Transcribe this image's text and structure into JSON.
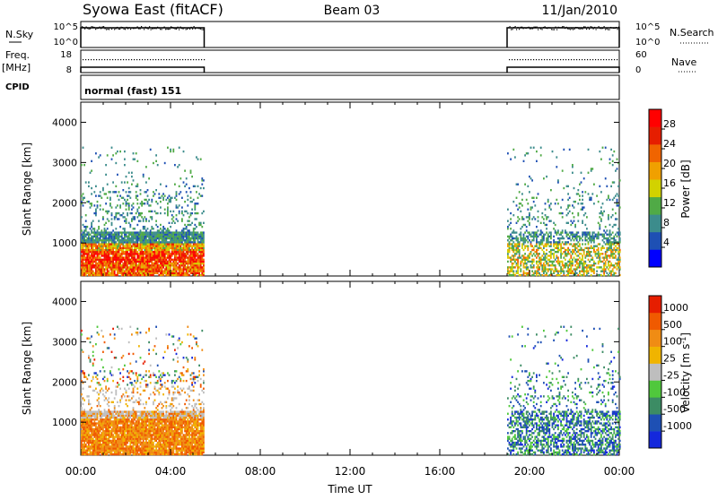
{
  "header": {
    "station": "Syowa East (fitACF)",
    "beam": "Beam 03",
    "date": "11/Jan/2010"
  },
  "panels": {
    "nsky": {
      "label": "N.Sky",
      "ticks_left": [
        "10^5",
        "10^0"
      ],
      "ticks_right": [
        "10^5",
        "10^0"
      ],
      "right_label": "N.Search"
    },
    "freq": {
      "label_line1": "Freq.",
      "label_line2": "[MHz]",
      "ticks_left": [
        "18",
        "8"
      ],
      "ticks_right": [
        "60",
        "0"
      ],
      "right_label": "Nave"
    },
    "cpid": {
      "label": "CPID",
      "text": "normal (fast) 151"
    }
  },
  "chart_data": [
    {
      "type": "heatmap",
      "name": "power",
      "ylabel": "Slant Range [km]",
      "xlabel": "Time UT",
      "xlim": [
        "00:00",
        "24:00"
      ],
      "ylim": [
        180,
        4500
      ],
      "x_ticks": [
        "00:00",
        "04:00",
        "08:00",
        "12:00",
        "16:00",
        "20:00",
        "00:00"
      ],
      "y_ticks": [
        1000,
        2000,
        3000,
        4000
      ],
      "data_intervals_ut": [
        [
          "00:00",
          "05:30"
        ],
        [
          "19:00",
          "24:00"
        ]
      ],
      "colorbar": {
        "label": "Power [dB]",
        "range": [
          0,
          32
        ],
        "ticks": [
          "4",
          "8",
          "12",
          "16",
          "20",
          "24",
          "28"
        ],
        "colors": [
          "#0000ff",
          "#1e50b4",
          "#3c8c8c",
          "#50aa46",
          "#d2d200",
          "#f0a000",
          "#f06400",
          "#e61e00",
          "#ff0000"
        ]
      }
    },
    {
      "type": "heatmap",
      "name": "velocity",
      "ylabel": "Slant Range [km]",
      "xlabel": "Time UT",
      "xlim": [
        "00:00",
        "24:00"
      ],
      "ylim": [
        180,
        4500
      ],
      "x_ticks": [
        "00:00",
        "04:00",
        "08:00",
        "12:00",
        "16:00",
        "20:00",
        "00:00"
      ],
      "y_ticks": [
        1000,
        2000,
        3000,
        4000
      ],
      "data_intervals_ut": [
        [
          "00:00",
          "05:30"
        ],
        [
          "19:00",
          "24:00"
        ]
      ],
      "colorbar": {
        "label": "Velocity [m s^-1]",
        "ticks": [
          "1000",
          "500",
          "100",
          "25",
          "-25",
          "-100",
          "-500",
          "-1000"
        ],
        "colors": [
          "#1428dc",
          "#1e50b4",
          "#3c8c64",
          "#50c83c",
          "#bebebe",
          "#f0b400",
          "#f08c14",
          "#f05a00",
          "#e61e00"
        ]
      }
    }
  ],
  "axis": {
    "x_title": "Time UT",
    "x_ticks": [
      "00:00",
      "04:00",
      "08:00",
      "12:00",
      "16:00",
      "20:00",
      "00:00"
    ]
  }
}
